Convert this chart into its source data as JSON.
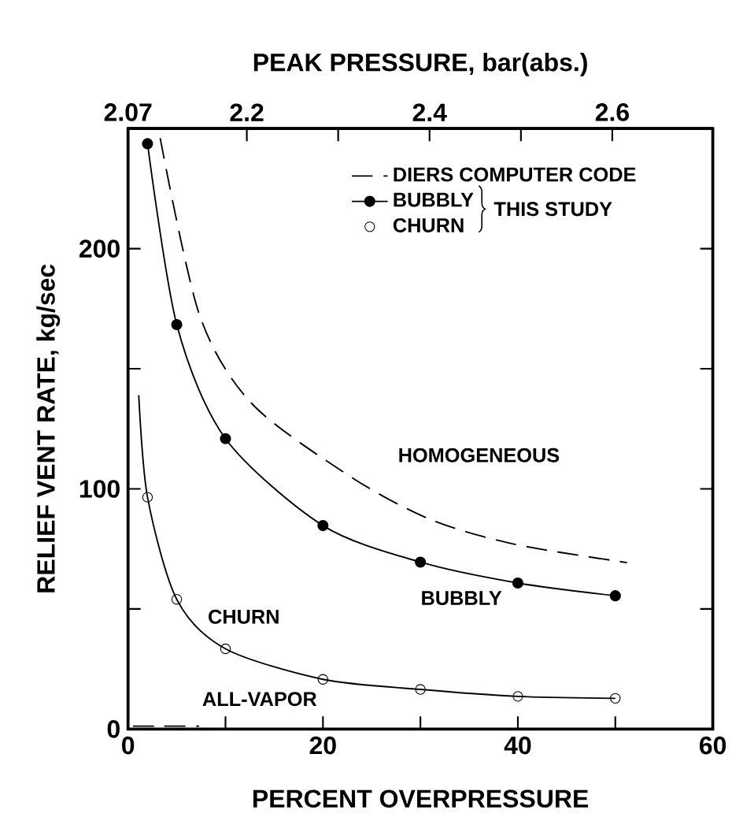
{
  "chart_data": {
    "type": "line",
    "xlabel": "PERCENT OVERPRESSURE",
    "ylabel": "RELIEF VENT RATE, kg/sec",
    "x2label": "PEAK PRESSURE, bar(abs.)",
    "xlim": [
      0,
      60
    ],
    "xticks": [
      0,
      {
        "value": 10,
        "label": null
      },
      20,
      {
        "value": 30,
        "label": null
      },
      40,
      {
        "value": 50,
        "label": null
      },
      60
    ],
    "ylim": [
      0,
      250
    ],
    "yticks": [
      0,
      {
        "value": 50,
        "label": null
      },
      100,
      {
        "value": 150,
        "label": null
      },
      200
    ],
    "x2lim": [
      2.07,
      2.71
    ],
    "x2ticks": [
      2.07,
      2.2,
      {
        "value": 2.3,
        "label": null
      },
      2.4,
      {
        "value": 2.5,
        "label": null
      },
      2.6
    ],
    "grid": false,
    "legend": "top right",
    "series": [
      {
        "name": "DIERS COMPUTER CODE",
        "line_style": "dashed",
        "marker": "none",
        "color": "#000000",
        "x": [
          3.3,
          7.3,
          12.7,
          22.9,
          31,
          39.6,
          51.2
        ],
        "values": [
          246,
          172.8,
          135.5,
          104.9,
          87.3,
          77,
          69.3
        ]
      },
      {
        "name": "BUBBLY",
        "line_style": "solid",
        "marker": "circle",
        "color": "#000000",
        "x": [
          2,
          5,
          10,
          20,
          30,
          40,
          50
        ],
        "values": [
          243.7,
          168.4,
          120.9,
          84.7,
          69.5,
          60.8,
          55.5
        ]
      },
      {
        "name": "CHURN",
        "type": "scatter",
        "marker": "circle",
        "color": "#000000",
        "x": [
          2,
          5,
          10,
          20,
          30,
          40,
          50
        ],
        "values": [
          96.5,
          54,
          33.4,
          20.7,
          16.5,
          13.6,
          12.8
        ]
      },
      {
        "line_style": "solid",
        "marker": "none",
        "color": "#000000",
        "x": [
          1.1,
          2,
          5,
          10,
          20,
          30,
          40,
          50
        ],
        "values": [
          139,
          96.5,
          54,
          33.4,
          20.7,
          16.5,
          13.6,
          12.8
        ]
      },
      {
        "line_style": "dashed",
        "marker": "none",
        "color": "#000000",
        "x": [
          0.5,
          3,
          7.3
        ],
        "values": [
          1.2,
          1.2,
          1.2
        ]
      }
    ],
    "annotations": [
      "THIS STUDY",
      "HOMOGENEOUS",
      "BUBBLY",
      "CHURN",
      "ALL-VAPOR"
    ]
  }
}
